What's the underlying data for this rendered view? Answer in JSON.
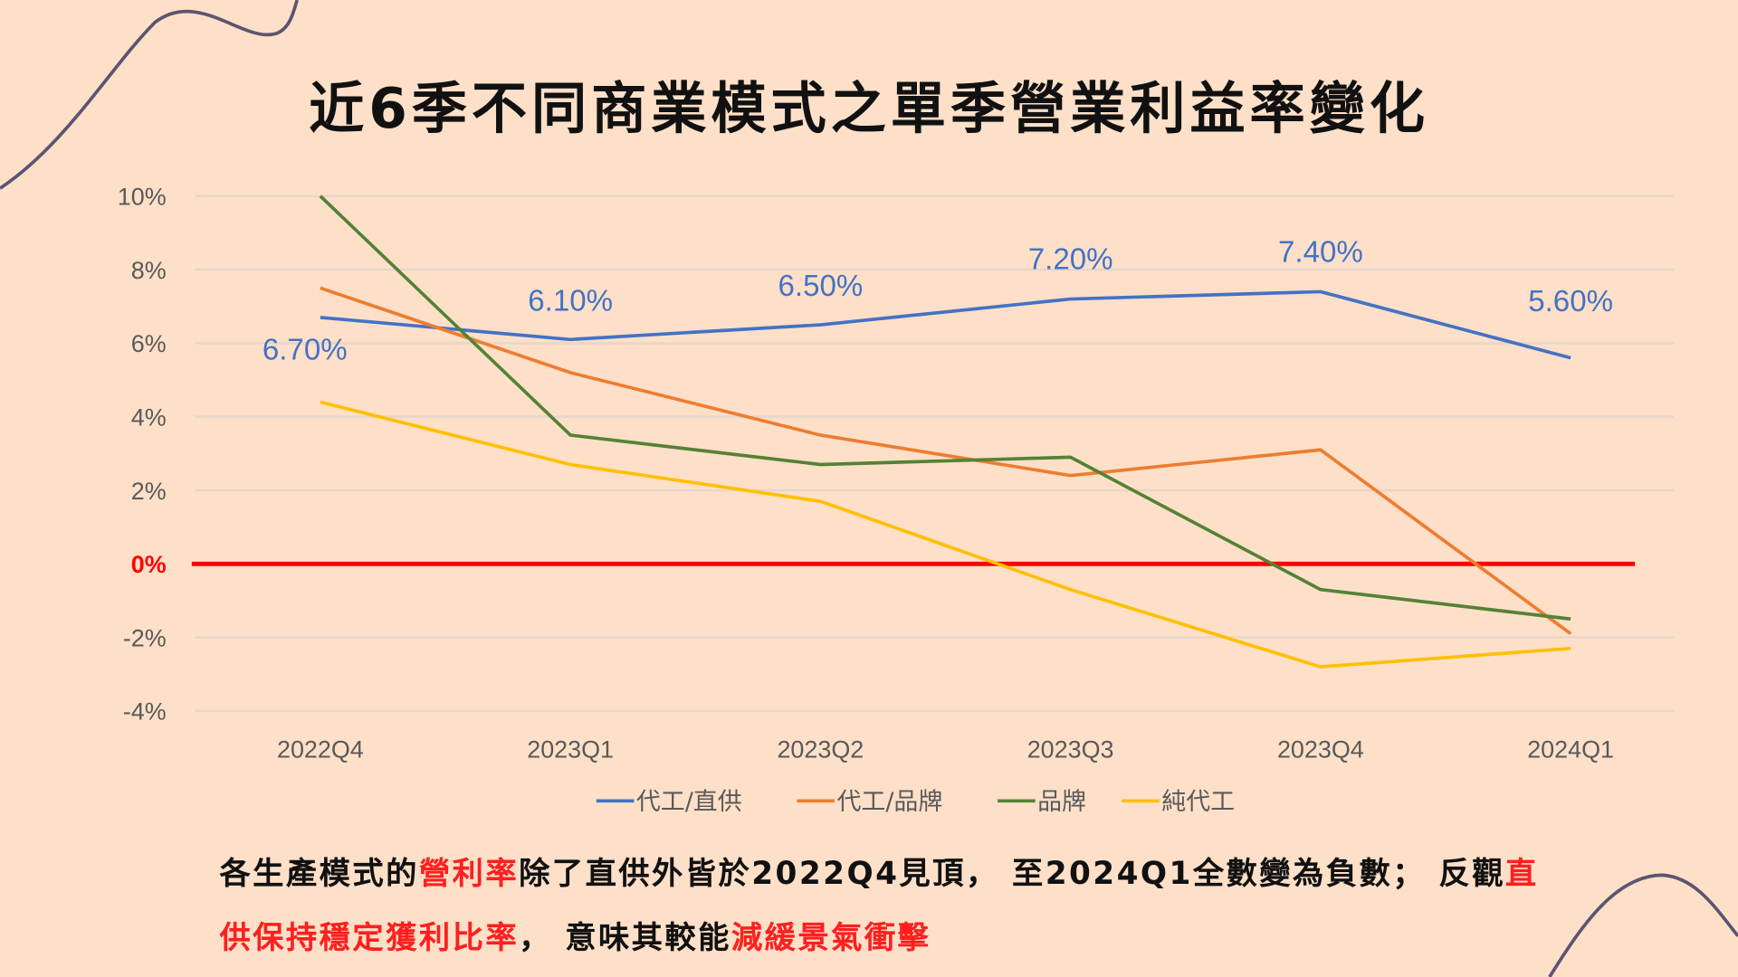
{
  "title": "近6季不同商業模式之單季營業利益率變化",
  "chart_data": {
    "type": "line",
    "title": "近6季不同商業模式之單季營業利益率變化",
    "categories": [
      "2022Q4",
      "2023Q1",
      "2023Q2",
      "2023Q3",
      "2023Q4",
      "2024Q1"
    ],
    "yticks": [
      "10%",
      "8%",
      "6%",
      "4%",
      "2%",
      "0%",
      "-2%",
      "-4%"
    ],
    "ytick_values": [
      10,
      8,
      6,
      4,
      2,
      0,
      -2,
      -4
    ],
    "ylim": [
      -4,
      10
    ],
    "grid": true,
    "legend_position": "bottom",
    "reference_line": {
      "value": 0,
      "color": "#ff0000"
    },
    "series": [
      {
        "name": "代工/直供",
        "color": "#4472c4",
        "values": [
          6.7,
          6.1,
          6.5,
          7.2,
          7.4,
          5.6
        ],
        "labels": [
          "6.70%",
          "6.10%",
          "6.50%",
          "7.20%",
          "7.40%",
          "5.60%"
        ]
      },
      {
        "name": "代工/品牌",
        "color": "#ed7d31",
        "values": [
          7.5,
          5.2,
          3.5,
          2.4,
          3.1,
          -1.9
        ]
      },
      {
        "name": "品牌",
        "color": "#548235",
        "values": [
          10.0,
          3.5,
          2.7,
          2.9,
          -0.7,
          -1.5
        ]
      },
      {
        "name": "純代工",
        "color": "#ffc000",
        "values": [
          4.4,
          2.7,
          1.7,
          -0.7,
          -2.8,
          -2.3
        ]
      }
    ]
  },
  "caption": {
    "p1": "各生產模式的",
    "h1": "營利率",
    "p2": "除了直供外皆於2022Q4見頂， 至2024Q1全數變為負數； 反觀",
    "h2": "直供保持穩定獲利比率",
    "p3": "， 意味其較能",
    "h3": "減緩景氣衝擊"
  }
}
